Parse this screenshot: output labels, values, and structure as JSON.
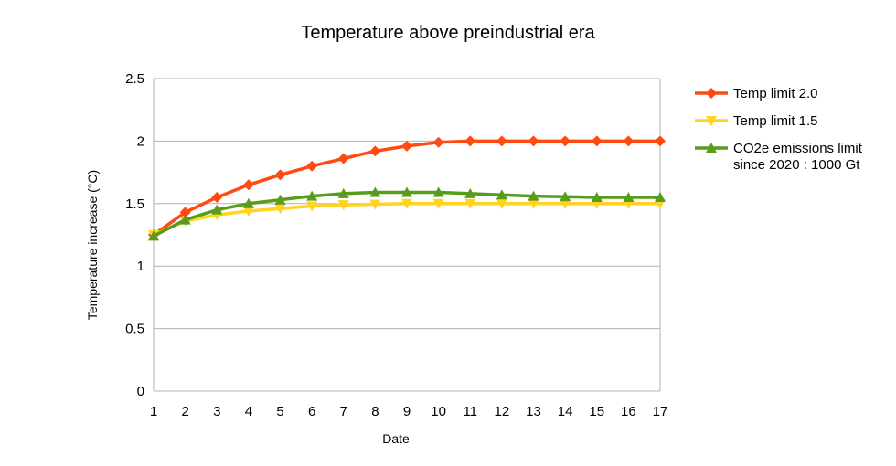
{
  "chart_data": {
    "type": "line",
    "title": "Temperature above preindustrial era",
    "xlabel": "Date",
    "ylabel": "Temperature increase (°C)",
    "x": [
      1,
      2,
      3,
      4,
      5,
      6,
      7,
      8,
      9,
      10,
      11,
      12,
      13,
      14,
      15,
      16,
      17
    ],
    "ylim": [
      0,
      2.5
    ],
    "yticks": [
      "0",
      "0.5",
      "1",
      "1.5",
      "2",
      "2.5"
    ],
    "grid": "horizontal",
    "legend_position": "right",
    "series": [
      {
        "name": "Temp limit 2.0",
        "color": "#ff4a12",
        "marker": "diamond",
        "values": [
          1.25,
          1.43,
          1.55,
          1.65,
          1.73,
          1.8,
          1.86,
          1.92,
          1.96,
          1.99,
          2.0,
          2.0,
          2.0,
          2.0,
          2.0,
          2.0,
          2.0
        ]
      },
      {
        "name": "Temp limit 1.5",
        "color": "#ffd320",
        "marker": "triangle-down",
        "values": [
          1.25,
          1.36,
          1.41,
          1.44,
          1.46,
          1.48,
          1.49,
          1.495,
          1.5,
          1.5,
          1.5,
          1.5,
          1.5,
          1.5,
          1.5,
          1.5,
          1.5
        ]
      },
      {
        "name": "CO2e emissions limit since 2020 : 1000 Gt",
        "legend_lines": [
          "CO2e emissions limit",
          "since 2020 : 1000 Gt"
        ],
        "color": "#579d1c",
        "marker": "triangle-up",
        "values": [
          1.24,
          1.37,
          1.45,
          1.5,
          1.53,
          1.56,
          1.58,
          1.59,
          1.59,
          1.59,
          1.58,
          1.57,
          1.56,
          1.555,
          1.55,
          1.55,
          1.55
        ]
      }
    ]
  }
}
